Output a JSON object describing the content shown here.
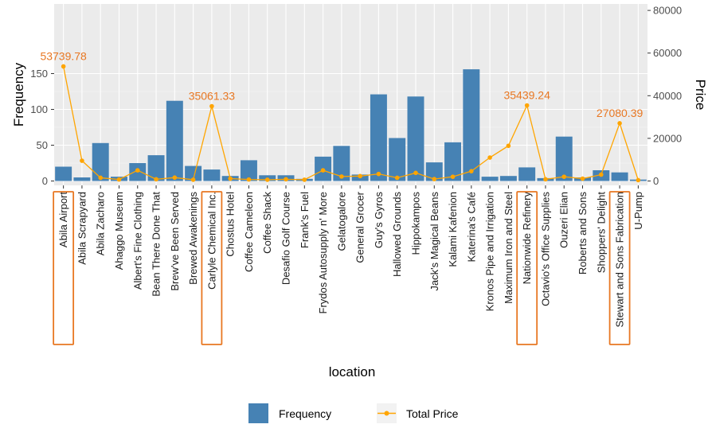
{
  "chart_data": {
    "type": "bar",
    "categories": [
      "Abila Airport",
      "Abila Scrapyard",
      "Abila Zacharo",
      "Ahaggo Museum",
      "Albert's Fine Clothing",
      "Bean There Done That",
      "Brew've Been Served",
      "Brewed Awakenings",
      "Carlyle Chemical Inc.",
      "Chostus Hotel",
      "Coffee Cameleon",
      "Coffee Shack",
      "Desafio Golf Course",
      "Frank's Fuel",
      "Frydos Autosupply n' More",
      "Gelatogalore",
      "General Grocer",
      "Guy's Gyros",
      "Hallowed Grounds",
      "Hippokampos",
      "Jack's Magical Beans",
      "Kalami Kafenion",
      "Katerina's Café",
      "Kronos Pipe and Irrigation",
      "Maximum Iron and Steel",
      "Nationwide Refinery",
      "Octavio's Office Supplies",
      "Ouzeri Elian",
      "Roberts and Sons",
      "Shoppers' Delight",
      "Stewart and Sons Fabrication",
      "U-Pump"
    ],
    "series": [
      {
        "name": "Frequency",
        "axis": "left",
        "type": "bar",
        "color": "#4682b4",
        "values": [
          20,
          5,
          53,
          6,
          25,
          36,
          112,
          21,
          16,
          7,
          29,
          8,
          8,
          3,
          34,
          49,
          9,
          121,
          60,
          118,
          26,
          54,
          156,
          6,
          7,
          19,
          4,
          62,
          5,
          15,
          12,
          2
        ]
      },
      {
        "name": "Total Price",
        "axis": "right",
        "type": "line",
        "color": "#ffa500",
        "values": [
          53739.78,
          9500,
          1500,
          700,
          5000,
          800,
          1600,
          600,
          35061.33,
          1100,
          700,
          600,
          800,
          600,
          5000,
          2100,
          2300,
          3300,
          1500,
          3800,
          900,
          2000,
          4600,
          11000,
          16500,
          35439.24,
          800,
          2000,
          1100,
          3000,
          27080.39,
          400
        ]
      }
    ],
    "annotations": [
      {
        "category": "Abila Airport",
        "text": "53739.78"
      },
      {
        "category": "Carlyle Chemical Inc.",
        "text": "35061.33"
      },
      {
        "category": "Nationwide Refinery",
        "text": "35439.24"
      },
      {
        "category": "Stewart and Sons Fabrication",
        "text": "27080.39"
      }
    ],
    "highlighted": [
      "Abila Airport",
      "Carlyle Chemical Inc.",
      "Nationwide Refinery",
      "Stewart and Sons Fabrication"
    ],
    "highlight_color": "#e87722",
    "xlabel": "location",
    "ylabel": "Frequency",
    "y2label": "Price",
    "ylim": [
      0,
      165
    ],
    "yticks": [
      "0",
      "50",
      "100",
      "150"
    ],
    "y2lim": [
      0,
      81500
    ],
    "y2ticks": [
      "0",
      "20000",
      "40000",
      "60000",
      "80000"
    ],
    "grid": true,
    "legend_position": "bottom",
    "legend": [
      "Frequency",
      "Total Price"
    ]
  }
}
